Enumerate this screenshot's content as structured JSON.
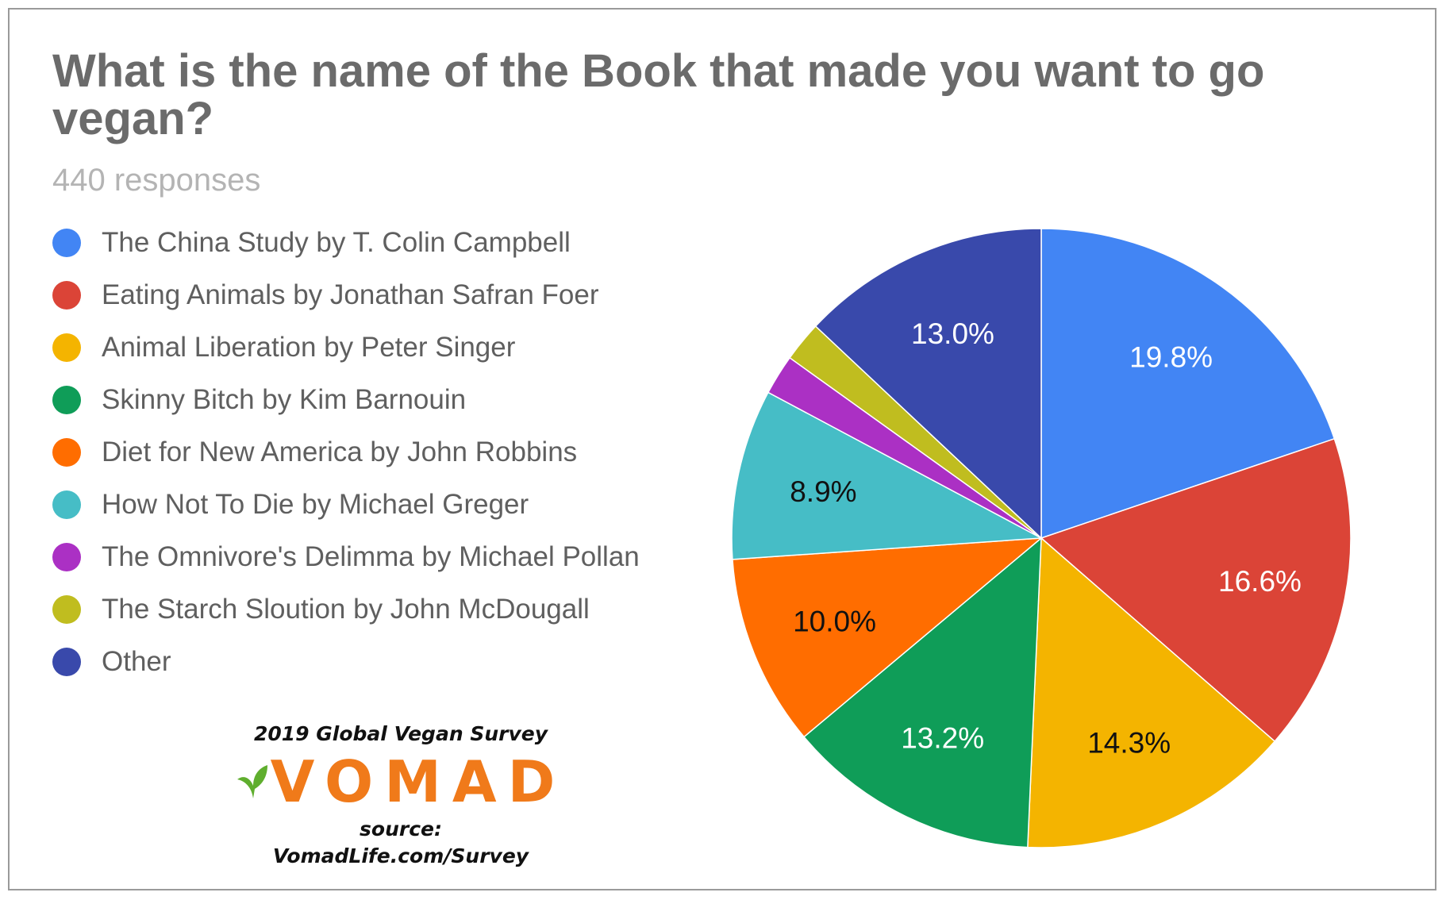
{
  "chart_data": {
    "type": "pie",
    "title": "What is the name of the Book that made you want to go vegan?",
    "subtitle": "440 responses",
    "legend_position": "left",
    "slices": [
      {
        "label": "The China Study by T. Colin Campbell",
        "value": 19.8,
        "display": "19.8%",
        "color": "#4285f4",
        "label_color": "#ffffff"
      },
      {
        "label": "Eating Animals by Jonathan Safran Foer",
        "value": 16.6,
        "display": "16.6%",
        "color": "#db4437",
        "label_color": "#ffffff"
      },
      {
        "label": "Animal Liberation by Peter Singer",
        "value": 14.3,
        "display": "14.3%",
        "color": "#f4b400",
        "label_color": "#111111"
      },
      {
        "label": "Skinny Bitch by Kim Barnouin",
        "value": 13.2,
        "display": "13.2%",
        "color": "#0f9d58",
        "label_color": "#ffffff"
      },
      {
        "label": "Diet for New America by John Robbins",
        "value": 10.0,
        "display": "10.0%",
        "color": "#ff6d00",
        "label_color": "#111111"
      },
      {
        "label": "How Not To Die by Michael Greger",
        "value": 8.9,
        "display": "8.9%",
        "color": "#46bdc6",
        "label_color": "#111111"
      },
      {
        "label": "The Omnivore's Delimma by Michael Pollan",
        "value": 2.1,
        "display": "",
        "color": "#ab30c4",
        "label_color": "#ffffff"
      },
      {
        "label": "The Starch Sloution by John McDougall",
        "value": 2.1,
        "display": "",
        "color": "#c0bd1f",
        "label_color": "#ffffff"
      },
      {
        "label": "Other",
        "value": 13.0,
        "display": "13.0%",
        "color": "#3949ab",
        "label_color": "#ffffff"
      }
    ]
  },
  "branding": {
    "survey": "2019 Global Vegan Survey",
    "logo_text": "VOMAD",
    "source": "source: VomadLife.com/Survey",
    "logo_color": "#f07a1a",
    "leaf_color": "#5fae2e"
  }
}
